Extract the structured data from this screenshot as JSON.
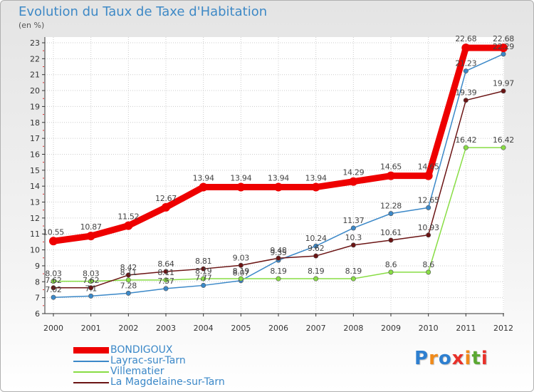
{
  "chart_data": {
    "type": "line",
    "title": "Evolution du Taux de Taxe d'Habitation",
    "unit_label": "(en %)",
    "xlabel": "",
    "ylabel": "",
    "ylim": [
      6,
      23
    ],
    "yticks": [
      "6",
      "7",
      "8",
      "9",
      "10",
      "11",
      "12",
      "13",
      "14",
      "15",
      "16",
      "17",
      "18",
      "19",
      "20",
      "21",
      "22",
      "23"
    ],
    "categories": [
      "2000",
      "2001",
      "2002",
      "2003",
      "2004",
      "2005",
      "2006",
      "2007",
      "2008",
      "2009",
      "2010",
      "2011",
      "2012"
    ],
    "series": [
      {
        "name": "BONDIGOUX",
        "color": "#ee0000",
        "values": [
          10.55,
          10.87,
          11.52,
          12.67,
          13.94,
          13.94,
          13.94,
          13.94,
          14.29,
          14.65,
          14.65,
          22.68,
          22.68
        ],
        "labels": [
          "10.55",
          "10.87",
          "11.52",
          "12.67",
          "13.94",
          "13.94",
          "13.94",
          "13.94",
          "14.29",
          "14.65",
          "14.65",
          "22.68",
          "22.68"
        ]
      },
      {
        "name": "Layrac-sur-Tarn",
        "color": "#3b88c8",
        "values": [
          7.02,
          7.1,
          7.28,
          7.57,
          7.77,
          8.07,
          9.35,
          10.24,
          11.37,
          12.28,
          12.65,
          21.23,
          22.29
        ],
        "labels": [
          "7.02",
          "7.1",
          "7.28",
          "7.57",
          "7.77",
          "8.07",
          "9.35",
          "10.24",
          "11.37",
          "12.28",
          "12.65",
          "21.23",
          "22.29"
        ]
      },
      {
        "name": "Villematier",
        "color": "#88dd44",
        "values": [
          8.03,
          8.03,
          8.11,
          8.11,
          8.19,
          8.19,
          8.19,
          8.19,
          8.19,
          8.6,
          8.6,
          16.42,
          16.42
        ],
        "labels": [
          "8.03",
          "8.03",
          "8.11",
          "8.11",
          "8.19",
          "8.19",
          "8.19",
          "8.19",
          "8.19",
          "8.6",
          "8.6",
          "16.42",
          "16.42"
        ]
      },
      {
        "name": "La Magdelaine-sur-Tarn",
        "color": "#6b1414",
        "values": [
          7.62,
          7.62,
          8.42,
          8.64,
          8.81,
          9.03,
          9.48,
          9.62,
          10.3,
          10.61,
          10.93,
          19.39,
          19.97
        ],
        "labels": [
          "7.62",
          "7.62",
          "8.42",
          "8.64",
          "8.81",
          "9.03",
          "9.48",
          "9.62",
          "10.3",
          "10.61",
          "10.93",
          "19.39",
          "19.97"
        ]
      }
    ],
    "grid": true,
    "legend_position": "bottom-left"
  },
  "brand": {
    "letters": [
      "P",
      "r",
      "o",
      "x",
      "i",
      "t",
      "i"
    ],
    "colors": [
      "#2e7fd0",
      "#f08a1a",
      "#2e7fd0",
      "#e8312a",
      "#f08a1a",
      "#5aa832",
      "#e8312a"
    ]
  }
}
